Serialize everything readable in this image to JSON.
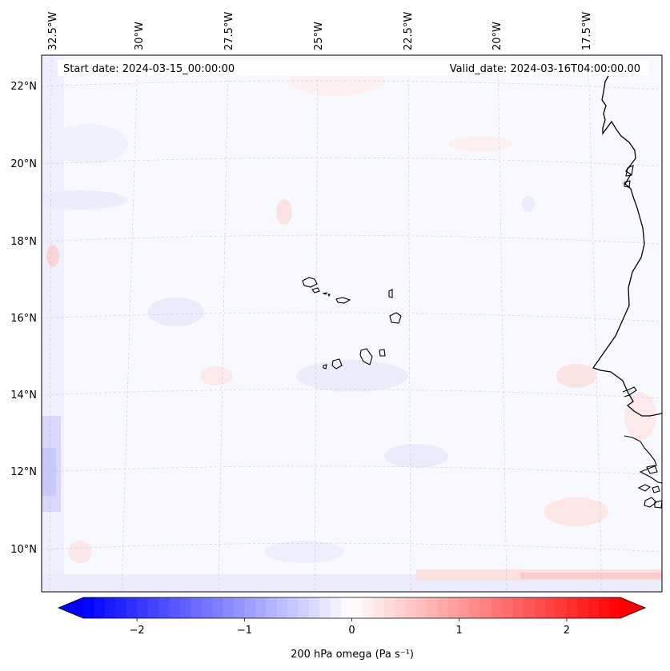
{
  "map": {
    "start_label": "Start date: 2024-03-15_00:00:00",
    "valid_label": "Valid_date: 2024-03-16T04:00:00.00",
    "lon_labels": [
      "32.5°W",
      "30°W",
      "27.5°W",
      "25°W",
      "22.5°W",
      "20°W",
      "17.5°W"
    ],
    "lat_labels": [
      "22°N",
      "20°N",
      "18°N",
      "16°N",
      "14°N",
      "12°N",
      "10°N"
    ],
    "field_name": "200 hPa omega",
    "region": "Cabo Verde / West African coast"
  },
  "colorbar": {
    "label": "200 hPa omega (Pa s⁻¹)",
    "ticks": [
      "−2",
      "−1",
      "0",
      "1",
      "2"
    ],
    "tick_values": [
      -2,
      -1,
      0,
      1,
      2
    ],
    "range": [
      -2.5,
      2.5
    ],
    "steps": 50,
    "extend": "both",
    "colormap": "bwr",
    "low_color": "#0000ff",
    "mid_color": "#ffffff",
    "high_color": "#ff0000"
  },
  "colors": {
    "background_field": "#f8f8ff",
    "coast": "#000000",
    "grid": "#bfbfbf"
  }
}
